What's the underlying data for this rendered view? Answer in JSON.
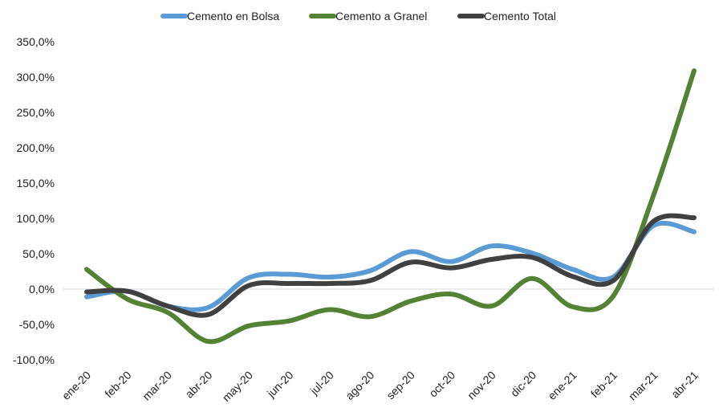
{
  "chart_data": {
    "type": "line",
    "title": "",
    "xlabel": "",
    "ylabel": "",
    "categories": [
      "ene-20",
      "feb-20",
      "mar-20",
      "abr-20",
      "may-20",
      "jun-20",
      "jul-20",
      "ago-20",
      "sep-20",
      "oct-20",
      "nov-20",
      "dic-20",
      "ene-21",
      "feb-21",
      "mar-21",
      "abr-21"
    ],
    "y_ticks": [
      "350,0%",
      "300,0%",
      "250,0%",
      "200,0%",
      "150,0%",
      "100,0%",
      "50,0%",
      "0,0%",
      "-50,0%",
      "-100,0%"
    ],
    "ylim": [
      -100,
      350
    ],
    "y_tick_step": 50,
    "grid": false,
    "zero_line": true,
    "legend": "top-center",
    "series": [
      {
        "name": "Cemento en Bolsa",
        "color": "#5b9bd5",
        "values": [
          -11,
          -3,
          -24,
          -26,
          16,
          21,
          17,
          26,
          53,
          39,
          61,
          51,
          28,
          17,
          90,
          81
        ]
      },
      {
        "name": "Cemento a Granel",
        "color": "#548235",
        "values": [
          28,
          -14,
          -33,
          -74,
          -52,
          -45,
          -29,
          -39,
          -17,
          -7,
          -24,
          15,
          -25,
          -10,
          133,
          309
        ]
      },
      {
        "name": "Cemento Total",
        "color": "#404040",
        "values": [
          -4,
          -3,
          -24,
          -36,
          5,
          8,
          8,
          12,
          38,
          30,
          42,
          45,
          18,
          12,
          96,
          101
        ]
      }
    ]
  }
}
